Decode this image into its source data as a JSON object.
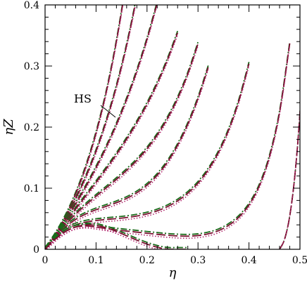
{
  "chart_data": {
    "type": "line",
    "xlabel": "η",
    "ylabel": "ηZ",
    "xlim": [
      0,
      0.5
    ],
    "ylim": [
      0,
      0.4
    ],
    "xticks": [
      0,
      0.1,
      0.2,
      0.3,
      0.4,
      0.5
    ],
    "yticks": [
      0,
      0.1,
      0.2,
      0.3,
      0.4
    ],
    "xtick_labels": [
      "0",
      "0.1",
      "0.2",
      "0.3",
      "0.4",
      "0.5"
    ],
    "ytick_labels": [
      "0",
      "0.1",
      "0.2",
      "0.3",
      "0.4"
    ],
    "grid": false,
    "legend": "none",
    "annotations": [
      {
        "text": "HS",
        "points_to": [
          0.138,
          0.214
        ]
      }
    ],
    "line_styles": [
      {
        "style": "dash-dot",
        "color": "#1a6b1a"
      },
      {
        "style": "long-dash",
        "color": "#7a1030"
      },
      {
        "style": "dotted",
        "color": "#b0206a"
      }
    ],
    "curve_families": [
      {
        "id": "HS",
        "x": [
          0,
          0.02,
          0.04,
          0.06,
          0.08,
          0.1,
          0.12,
          0.14,
          0.16,
          0.18
        ],
        "y": [
          0,
          0.0243,
          0.0541,
          0.0907,
          0.1353,
          0.1901,
          0.2573,
          0.3404,
          0.4435,
          0.5724
        ]
      },
      {
        "id": "curve-2",
        "x": [
          0,
          0.02,
          0.04,
          0.06,
          0.08,
          0.1,
          0.12,
          0.14,
          0.16,
          0.18,
          0.2
        ],
        "y": [
          0,
          0.0237,
          0.051,
          0.0825,
          0.1187,
          0.1606,
          0.2095,
          0.2666,
          0.334,
          0.414,
          0.5092
        ]
      },
      {
        "id": "curve-3",
        "x": [
          0,
          0.02,
          0.04,
          0.06,
          0.08,
          0.1,
          0.12,
          0.14,
          0.16,
          0.18,
          0.2,
          0.22
        ],
        "y": [
          0,
          0.023,
          0.0477,
          0.0742,
          0.1026,
          0.1335,
          0.1671,
          0.2042,
          0.2454,
          0.2916,
          0.3437,
          0.4031
        ]
      },
      {
        "id": "curve-4",
        "x": [
          0,
          0.02,
          0.04,
          0.06,
          0.08,
          0.1,
          0.12,
          0.14,
          0.16,
          0.18,
          0.2,
          0.22,
          0.24,
          0.26
        ],
        "y": [
          0,
          0.0222,
          0.0442,
          0.0659,
          0.0876,
          0.1094,
          0.1319,
          0.1554,
          0.1804,
          0.2076,
          0.2376,
          0.2714,
          0.3099,
          0.3544
        ]
      },
      {
        "id": "curve-5",
        "x": [
          0,
          0.02,
          0.04,
          0.06,
          0.08,
          0.1,
          0.12,
          0.14,
          0.16,
          0.18,
          0.2,
          0.22,
          0.24,
          0.26,
          0.28,
          0.3
        ],
        "y": [
          0,
          0.0214,
          0.0405,
          0.0575,
          0.0727,
          0.0868,
          0.1005,
          0.1144,
          0.1292,
          0.1456,
          0.1646,
          0.1871,
          0.2141,
          0.2469,
          0.2871,
          0.3364
        ]
      },
      {
        "id": "curve-6",
        "x": [
          0,
          0.02,
          0.04,
          0.06,
          0.08,
          0.1,
          0.12,
          0.14,
          0.16,
          0.18,
          0.2,
          0.22,
          0.24,
          0.26,
          0.28,
          0.3,
          0.32
        ],
        "y": [
          0,
          0.0206,
          0.0367,
          0.0489,
          0.0578,
          0.0647,
          0.0704,
          0.0763,
          0.0833,
          0.0925,
          0.1049,
          0.1213,
          0.1428,
          0.1703,
          0.2047,
          0.2469,
          0.2978
        ]
      },
      {
        "id": "curve-7",
        "x": [
          0,
          0.02,
          0.04,
          0.06,
          0.08,
          0.1,
          0.12,
          0.14,
          0.16,
          0.18,
          0.2,
          0.22,
          0.24,
          0.26,
          0.28,
          0.3,
          0.32,
          0.34,
          0.36,
          0.38,
          0.4
        ],
        "y": [
          0,
          0.0195,
          0.0321,
          0.0399,
          0.0445,
          0.0471,
          0.0488,
          0.0502,
          0.052,
          0.0544,
          0.0579,
          0.0629,
          0.0698,
          0.0792,
          0.0917,
          0.1083,
          0.13,
          0.1583,
          0.195,
          0.2425,
          0.3037
        ]
      },
      {
        "id": "curve-8",
        "x": [
          0,
          0.02,
          0.04,
          0.06,
          0.08,
          0.1,
          0.12,
          0.14,
          0.16,
          0.18,
          0.2,
          0.22,
          0.24,
          0.26,
          0.28,
          0.3,
          0.32,
          0.34,
          0.36,
          0.38,
          0.4,
          0.42,
          0.44,
          0.46,
          0.48
        ],
        "y": [
          0,
          0.0175,
          0.0293,
          0.0363,
          0.0382,
          0.0365,
          0.0339,
          0.0317,
          0.0298,
          0.0281,
          0.0263,
          0.0245,
          0.023,
          0.0219,
          0.0215,
          0.0225,
          0.0253,
          0.0304,
          0.0392,
          0.0524,
          0.0726,
          0.1034,
          0.1509,
          0.224,
          0.3371
        ]
      },
      {
        "id": "curve-9",
        "x": [
          0,
          0.02,
          0.04,
          0.06,
          0.08,
          0.1,
          0.12,
          0.14,
          0.16,
          0.18,
          0.2,
          0.22,
          0.24,
          0.26,
          0.28
        ],
        "y": [
          0,
          0.0165,
          0.0289,
          0.0366,
          0.0398,
          0.0391,
          0.0352,
          0.0292,
          0.0221,
          0.015,
          0.0085,
          0.0034,
          0.0002,
          0,
          0
        ]
      },
      {
        "id": "curve-10",
        "x": [
          0.46,
          0.47,
          0.48,
          0.49,
          0.5,
          0.51
        ],
        "y": [
          0,
          0.0169,
          0.0547,
          0.1207,
          0.2235,
          0.375
        ]
      }
    ]
  }
}
